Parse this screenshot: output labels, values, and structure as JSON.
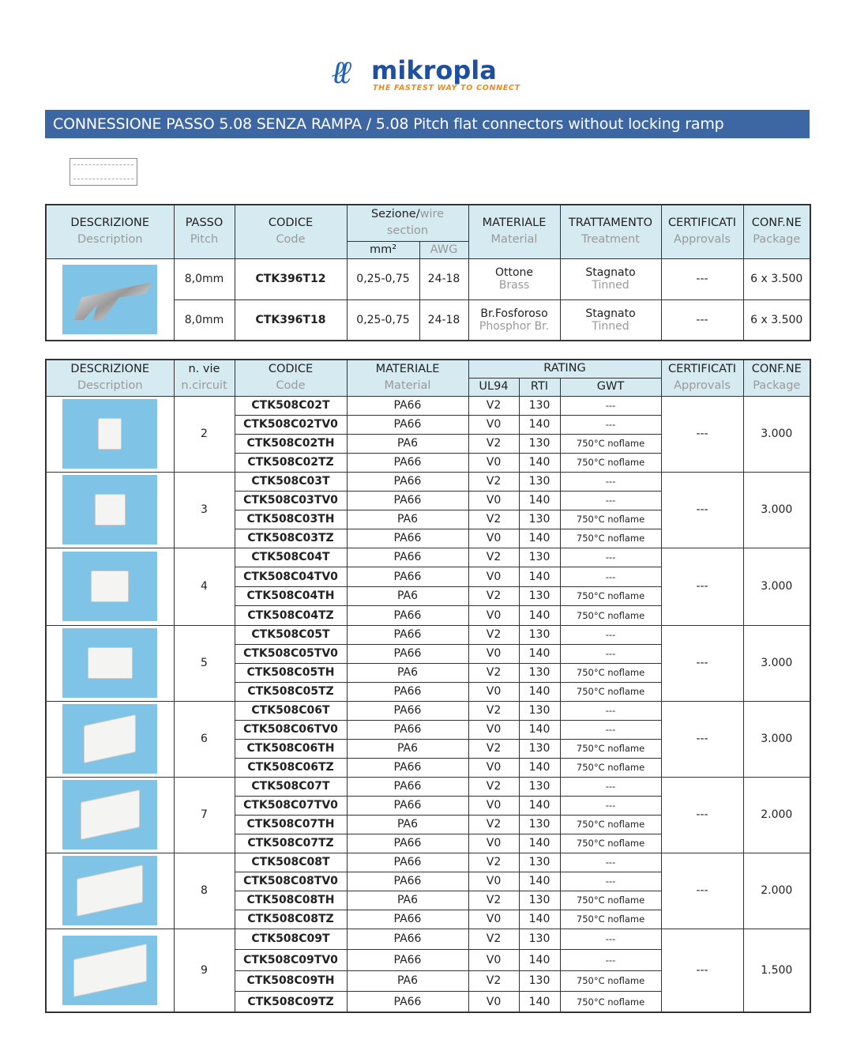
{
  "logo": {
    "name": "mikropla",
    "tagline": "THE FASTEST WAY TO CONNECT"
  },
  "title": "CONNESSIONE PASSO 5.08 SENZA RAMPA / 5.08 Pitch flat connectors without locking ramp",
  "colors": {
    "title_bar": "#3c67a3",
    "header_bg": "#d6eaf2",
    "photo_bg": "#7fc3e6",
    "logo_blue": "#1e4fa0",
    "tagline_orange": "#f08a1c"
  },
  "table1": {
    "headers": {
      "desc_it": "DESCRIZIONE",
      "desc_en": "Description",
      "pitch_it": "PASSO",
      "pitch_en": "Pitch",
      "code_it": "CODICE",
      "code_en": "Code",
      "section_it": "Sezione/",
      "section_en1": "wire",
      "section_en2": "section",
      "mm2": "mm²",
      "awg": "AWG",
      "mat_it": "MATERIALE",
      "mat_en": "Material",
      "treat_it": "TRATTAMENTO",
      "treat_en": "Treatment",
      "cert_it": "CERTIFICATI",
      "cert_en": "Approvals",
      "pkg_it": "CONF.NE",
      "pkg_en": "Package"
    },
    "rows": [
      {
        "pitch": "8,0mm",
        "code": "CTK396T12",
        "mm2": "0,25-0,75",
        "awg": "24-18",
        "mat_it": "Ottone",
        "mat_en": "Brass",
        "treat_it": "Stagnato",
        "treat_en": "Tinned",
        "cert": "---",
        "pkg": "6 x 3.500"
      },
      {
        "pitch": "8,0mm",
        "code": "CTK396T18",
        "mm2": "0,25-0,75",
        "awg": "24-18",
        "mat_it": "Br.Fosforoso",
        "mat_en": "Phosphor Br.",
        "treat_it": "Stagnato",
        "treat_en": "Tinned",
        "cert": "---",
        "pkg": "6 x 3.500"
      }
    ]
  },
  "table2": {
    "headers": {
      "desc_it": "DESCRIZIONE",
      "desc_en": "Description",
      "ways_it": "n. vie",
      "ways_en": "n.circuit",
      "code_it": "CODICE",
      "code_en": "Code",
      "mat_it": "MATERIALE",
      "mat_en": "Material",
      "rating": "RATING",
      "ul94": "UL94",
      "rti": "RTI",
      "gwt": "GWT",
      "cert_it": "CERTIFICATI",
      "cert_en": "Approvals",
      "pkg_it": "CONF.NE",
      "pkg_en": "Package"
    },
    "groups": [
      {
        "ways": "2",
        "cert": "---",
        "pkg": "3.000",
        "items": [
          [
            "CTK508C02T",
            "PA66",
            "V2",
            "130",
            "---"
          ],
          [
            "CTK508C02TV0",
            "PA66",
            "V0",
            "140",
            "---"
          ],
          [
            "CTK508C02TH",
            "PA6",
            "V2",
            "130",
            "750°C noflame"
          ],
          [
            "CTK508C02TZ",
            "PA66",
            "V0",
            "140",
            "750°C noflame"
          ]
        ]
      },
      {
        "ways": "3",
        "cert": "---",
        "pkg": "3.000",
        "items": [
          [
            "CTK508C03T",
            "PA66",
            "V2",
            "130",
            "---"
          ],
          [
            "CTK508C03TV0",
            "PA66",
            "V0",
            "140",
            "---"
          ],
          [
            "CTK508C03TH",
            "PA6",
            "V2",
            "130",
            "750°C noflame"
          ],
          [
            "CTK508C03TZ",
            "PA66",
            "V0",
            "140",
            "750°C noflame"
          ]
        ]
      },
      {
        "ways": "4",
        "cert": "---",
        "pkg": "3.000",
        "items": [
          [
            "CTK508C04T",
            "PA66",
            "V2",
            "130",
            "---"
          ],
          [
            "CTK508C04TV0",
            "PA66",
            "V0",
            "140",
            "---"
          ],
          [
            "CTK508C04TH",
            "PA6",
            "V2",
            "130",
            "750°C noflame"
          ],
          [
            "CTK508C04TZ",
            "PA66",
            "V0",
            "140",
            "750°C noflame"
          ]
        ]
      },
      {
        "ways": "5",
        "cert": "---",
        "pkg": "3.000",
        "items": [
          [
            "CTK508C05T",
            "PA66",
            "V2",
            "130",
            "---"
          ],
          [
            "CTK508C05TV0",
            "PA66",
            "V0",
            "140",
            "---"
          ],
          [
            "CTK508C05TH",
            "PA6",
            "V2",
            "130",
            "750°C noflame"
          ],
          [
            "CTK508C05TZ",
            "PA66",
            "V0",
            "140",
            "750°C noflame"
          ]
        ]
      },
      {
        "ways": "6",
        "cert": "---",
        "pkg": "3.000",
        "items": [
          [
            "CTK508C06T",
            "PA66",
            "V2",
            "130",
            "---"
          ],
          [
            "CTK508C06TV0",
            "PA66",
            "V0",
            "140",
            "---"
          ],
          [
            "CTK508C06TH",
            "PA6",
            "V2",
            "130",
            "750°C noflame"
          ],
          [
            "CTK508C06TZ",
            "PA66",
            "V0",
            "140",
            "750°C noflame"
          ]
        ]
      },
      {
        "ways": "7",
        "cert": "---",
        "pkg": "2.000",
        "items": [
          [
            "CTK508C07T",
            "PA66",
            "V2",
            "130",
            "---"
          ],
          [
            "CTK508C07TV0",
            "PA66",
            "V0",
            "140",
            "---"
          ],
          [
            "CTK508C07TH",
            "PA6",
            "V2",
            "130",
            "750°C noflame"
          ],
          [
            "CTK508C07TZ",
            "PA66",
            "V0",
            "140",
            "750°C noflame"
          ]
        ]
      },
      {
        "ways": "8",
        "cert": "---",
        "pkg": "2.000",
        "items": [
          [
            "CTK508C08T",
            "PA66",
            "V2",
            "130",
            "---"
          ],
          [
            "CTK508C08TV0",
            "PA66",
            "V0",
            "140",
            "---"
          ],
          [
            "CTK508C08TH",
            "PA6",
            "V2",
            "130",
            "750°C noflame"
          ],
          [
            "CTK508C08TZ",
            "PA66",
            "V0",
            "140",
            "750°C noflame"
          ]
        ]
      },
      {
        "ways": "9",
        "cert": "---",
        "pkg": "1.500",
        "items": [
          [
            "CTK508C09T",
            "PA66",
            "V2",
            "130",
            "---"
          ],
          [
            "CTK508C09TV0",
            "PA66",
            "V0",
            "140",
            "---"
          ],
          [
            "CTK508C09TH",
            "PA6",
            "V2",
            "130",
            "750°C noflame"
          ],
          [
            "CTK508C09TZ",
            "PA66",
            "V0",
            "140",
            "750°C noflame"
          ]
        ]
      }
    ]
  }
}
